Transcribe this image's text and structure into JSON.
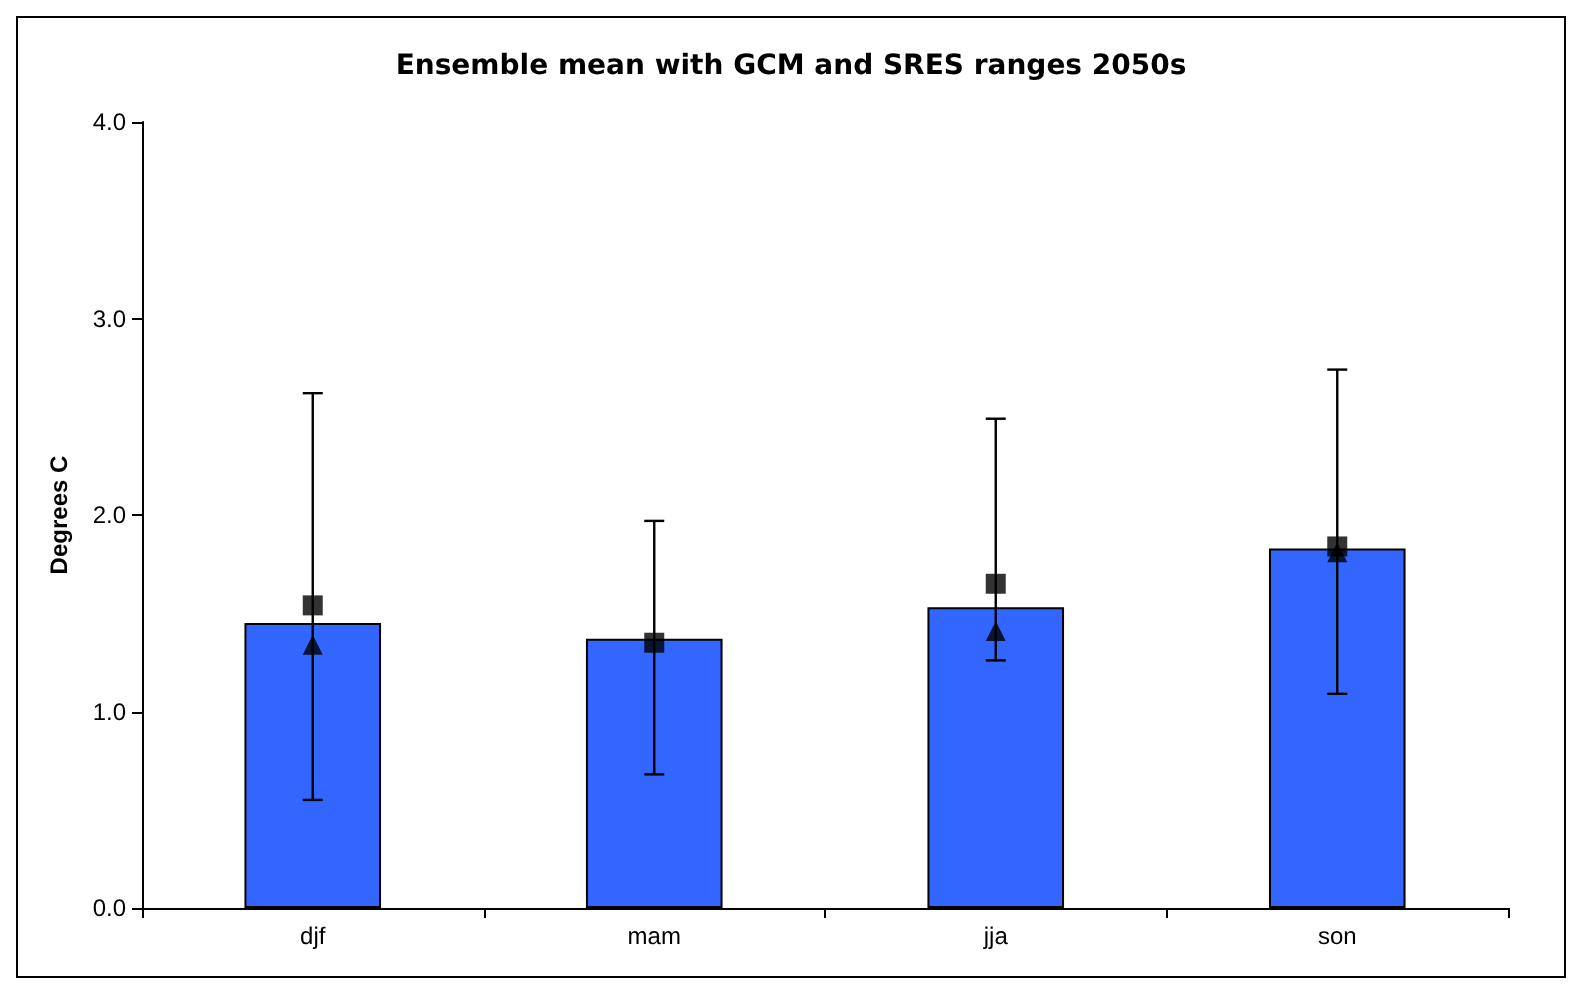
{
  "chart_data": {
    "type": "bar",
    "title": "Ensemble mean with GCM and SRES ranges 2050s",
    "ylabel": "Degrees C",
    "categories": [
      "djf",
      "mam",
      "jja",
      "son"
    ],
    "series": [
      {
        "color": "#3366ff",
        "values": [
          1.45,
          1.37,
          1.53,
          1.83
        ],
        "errors": [
          [
            0.55,
            2.62
          ],
          [
            0.68,
            1.97
          ],
          [
            1.26,
            2.49
          ],
          [
            1.09,
            2.74
          ]
        ]
      },
      {
        "type": "scatter",
        "marker": "square",
        "color": "#000000",
        "x": [
          "djf",
          "mam",
          "jja",
          "son"
        ],
        "values": [
          1.54,
          1.35,
          1.65,
          1.84
        ]
      },
      {
        "type": "scatter",
        "marker": "triangle",
        "color": "#000000",
        "x": [
          "djf",
          "mam",
          "jja",
          "son"
        ],
        "values": [
          1.34,
          null,
          1.41,
          1.81
        ]
      }
    ],
    "ylim": [
      0,
      4
    ],
    "yticks": [
      {
        "value": 0,
        "label": "0.0"
      },
      {
        "value": 1,
        "label": "1.0"
      },
      {
        "value": 2,
        "label": "2.0"
      },
      {
        "value": 3,
        "label": "3.0"
      },
      {
        "value": 4,
        "label": "4.0"
      }
    ],
    "grid": false
  }
}
